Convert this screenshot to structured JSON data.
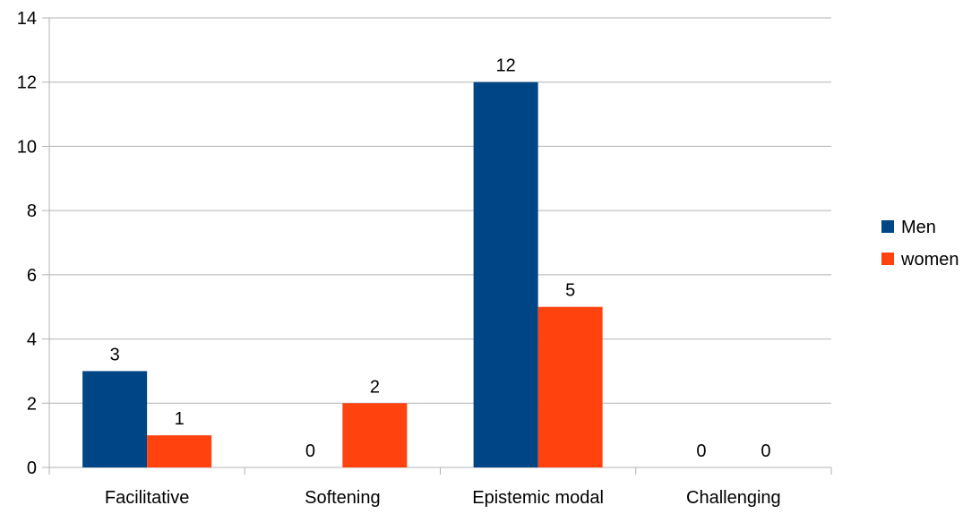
{
  "chart_data": {
    "type": "bar",
    "categories": [
      "Facilitative",
      "Softening",
      "Epistemic modal",
      "Challenging"
    ],
    "series": [
      {
        "name": "Men",
        "values": [
          3,
          0,
          12,
          0
        ],
        "color": "#004586"
      },
      {
        "name": "women",
        "values": [
          1,
          2,
          5,
          0
        ],
        "color": "#ff420e"
      }
    ],
    "title": "",
    "xlabel": "",
    "ylabel": "",
    "ylim": [
      0,
      14
    ],
    "yticks": [
      0,
      2,
      4,
      6,
      8,
      10,
      12,
      14
    ],
    "grid": true,
    "legend_position": "right",
    "data_labels": true
  }
}
